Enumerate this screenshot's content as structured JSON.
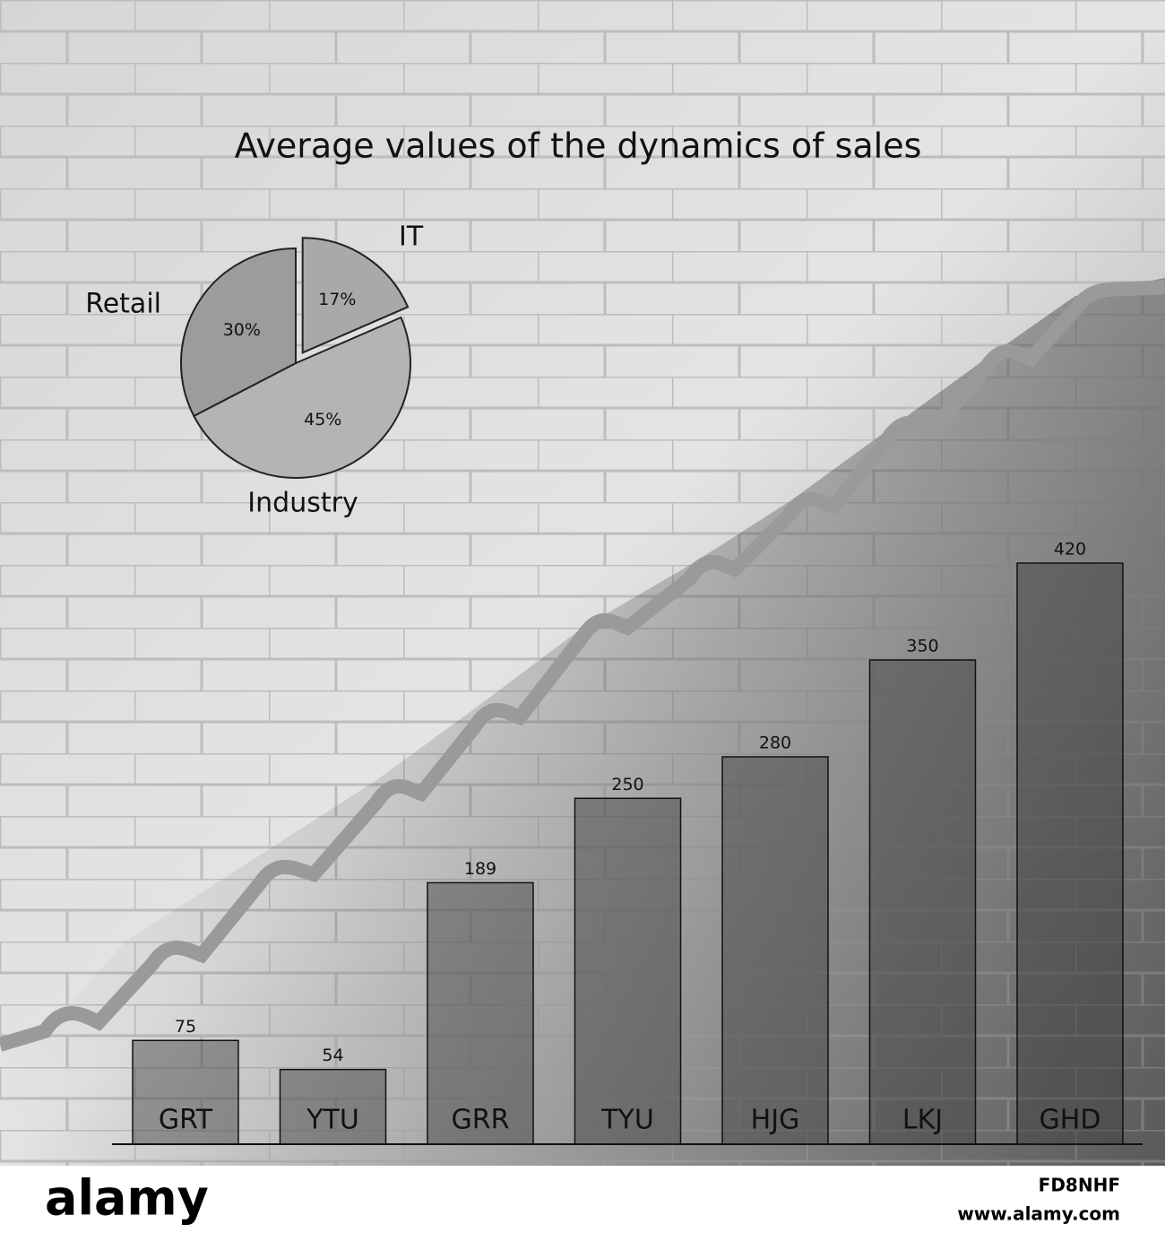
{
  "chart_data": [
    {
      "type": "pie",
      "categories": [
        "IT",
        "Retail",
        "Industry"
      ],
      "values": [
        17,
        30,
        45
      ],
      "value_labels": [
        "17%",
        "30%",
        "45%"
      ],
      "colors": [
        "#a9a9a9",
        "#9c9c9c",
        "#b4b4b4"
      ],
      "explode": [
        true,
        false,
        false
      ]
    },
    {
      "type": "bar",
      "title": "Average values of the dynamics of sales",
      "categories": [
        "GRT",
        "YTU",
        "GRR",
        "TYU",
        "HJG",
        "LKJ",
        "GHD"
      ],
      "values": [
        75,
        54,
        189,
        250,
        280,
        350,
        420
      ],
      "color": "#3c3c3c"
    }
  ],
  "footer": {
    "logo": "alamy",
    "image_id": "FD8NHF",
    "url": "www.alamy.com"
  }
}
